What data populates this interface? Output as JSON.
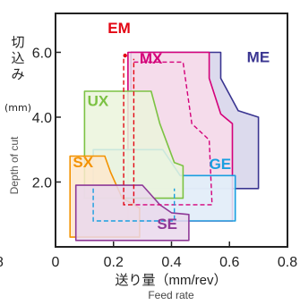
{
  "chart_data": {
    "type": "area",
    "title": "",
    "xlabel": "送り量（mm/rev）",
    "xlabel_en": "Feed rate",
    "ylabel": "切込み",
    "ylabel_unit": "(mm)",
    "ylabel_en": "Depth of cut",
    "xlim": [
      0,
      0.8
    ],
    "ylim": [
      0,
      7.2
    ],
    "x_ticks": [
      "0",
      "0.2",
      "0.4",
      "0.6",
      "0.8"
    ],
    "x_tick_values": [
      0,
      0.2,
      0.4,
      0.6,
      0.8
    ],
    "x_tick_left_partial": "8",
    "y_ticks": [
      "2.0",
      "4.0",
      "6.0"
    ],
    "y_tick_values": [
      2,
      4,
      6
    ],
    "grid": false,
    "series": [
      {
        "name": "ME",
        "color": "#3a3591",
        "fill": "#d6d4ea",
        "polygon": [
          [
            0.26,
            6.0
          ],
          [
            0.57,
            6.0
          ],
          [
            0.57,
            5.2
          ],
          [
            0.63,
            4.2
          ],
          [
            0.7,
            4.0
          ],
          [
            0.7,
            1.8
          ],
          [
            0.26,
            1.8
          ]
        ],
        "label_at": [
          0.66,
          5.7
        ]
      },
      {
        "name": "MX",
        "color": "#d4007a",
        "fill": "#f9dcea",
        "polygon": [
          [
            0.25,
            6.0
          ],
          [
            0.53,
            6.0
          ],
          [
            0.53,
            5.2
          ],
          [
            0.57,
            4.1
          ],
          [
            0.61,
            3.8
          ],
          [
            0.61,
            0.8
          ],
          [
            0.25,
            0.8
          ]
        ],
        "inner_dashed": [
          [
            0.27,
            5.7
          ],
          [
            0.44,
            5.7
          ],
          [
            0.47,
            3.8
          ],
          [
            0.53,
            3.3
          ],
          [
            0.54,
            1.3
          ],
          [
            0.27,
            1.3
          ]
        ],
        "label_at": [
          0.29,
          5.65
        ]
      },
      {
        "name": "EM",
        "color": "#e30613",
        "fill": "none",
        "dashed": [
          [
            0.235,
            5.8
          ],
          [
            0.235,
            1.3
          ],
          [
            0.27,
            1.3
          ],
          [
            0.27,
            5.8
          ]
        ],
        "point": [
          0.24,
          5.9
        ],
        "label_at": [
          0.18,
          6.6
        ]
      },
      {
        "name": "GE",
        "color": "#1a9fe0",
        "fill": "#dff0fa",
        "polygon": [
          [
            0.13,
            3.0
          ],
          [
            0.37,
            3.0
          ],
          [
            0.43,
            2.2
          ],
          [
            0.62,
            2.2
          ],
          [
            0.62,
            0.8
          ],
          [
            0.13,
            0.8
          ]
        ],
        "inner_dashed": [
          [
            0.13,
            1.8
          ],
          [
            0.13,
            0.8
          ],
          [
            0.41,
            0.8
          ],
          [
            0.41,
            1.8
          ]
        ],
        "label_at": [
          0.53,
          2.4
        ]
      },
      {
        "name": "UX",
        "color": "#7cc243",
        "fill": "#ebf5dc",
        "polygon": [
          [
            0.1,
            4.8
          ],
          [
            0.33,
            4.8
          ],
          [
            0.36,
            3.8
          ],
          [
            0.41,
            2.6
          ],
          [
            0.44,
            2.5
          ],
          [
            0.44,
            1.5
          ],
          [
            0.1,
            1.5
          ]
        ],
        "label_at": [
          0.11,
          4.35
        ]
      },
      {
        "name": "SX",
        "color": "#f39200",
        "fill": "#fde8cc",
        "polygon": [
          [
            0.05,
            2.8
          ],
          [
            0.17,
            2.8
          ],
          [
            0.19,
            2.3
          ],
          [
            0.23,
            1.5
          ],
          [
            0.29,
            1.2
          ],
          [
            0.29,
            0.3
          ],
          [
            0.05,
            0.3
          ]
        ],
        "label_at": [
          0.06,
          2.45
        ]
      },
      {
        "name": "SE",
        "color": "#8e3a97",
        "fill": "#ead8ec",
        "polygon": [
          [
            0.07,
            1.9
          ],
          [
            0.3,
            1.9
          ],
          [
            0.36,
            1.3
          ],
          [
            0.4,
            1.05
          ],
          [
            0.46,
            1.0
          ],
          [
            0.46,
            0.2
          ],
          [
            0.07,
            0.2
          ]
        ],
        "label_at": [
          0.35,
          0.55
        ]
      }
    ]
  }
}
